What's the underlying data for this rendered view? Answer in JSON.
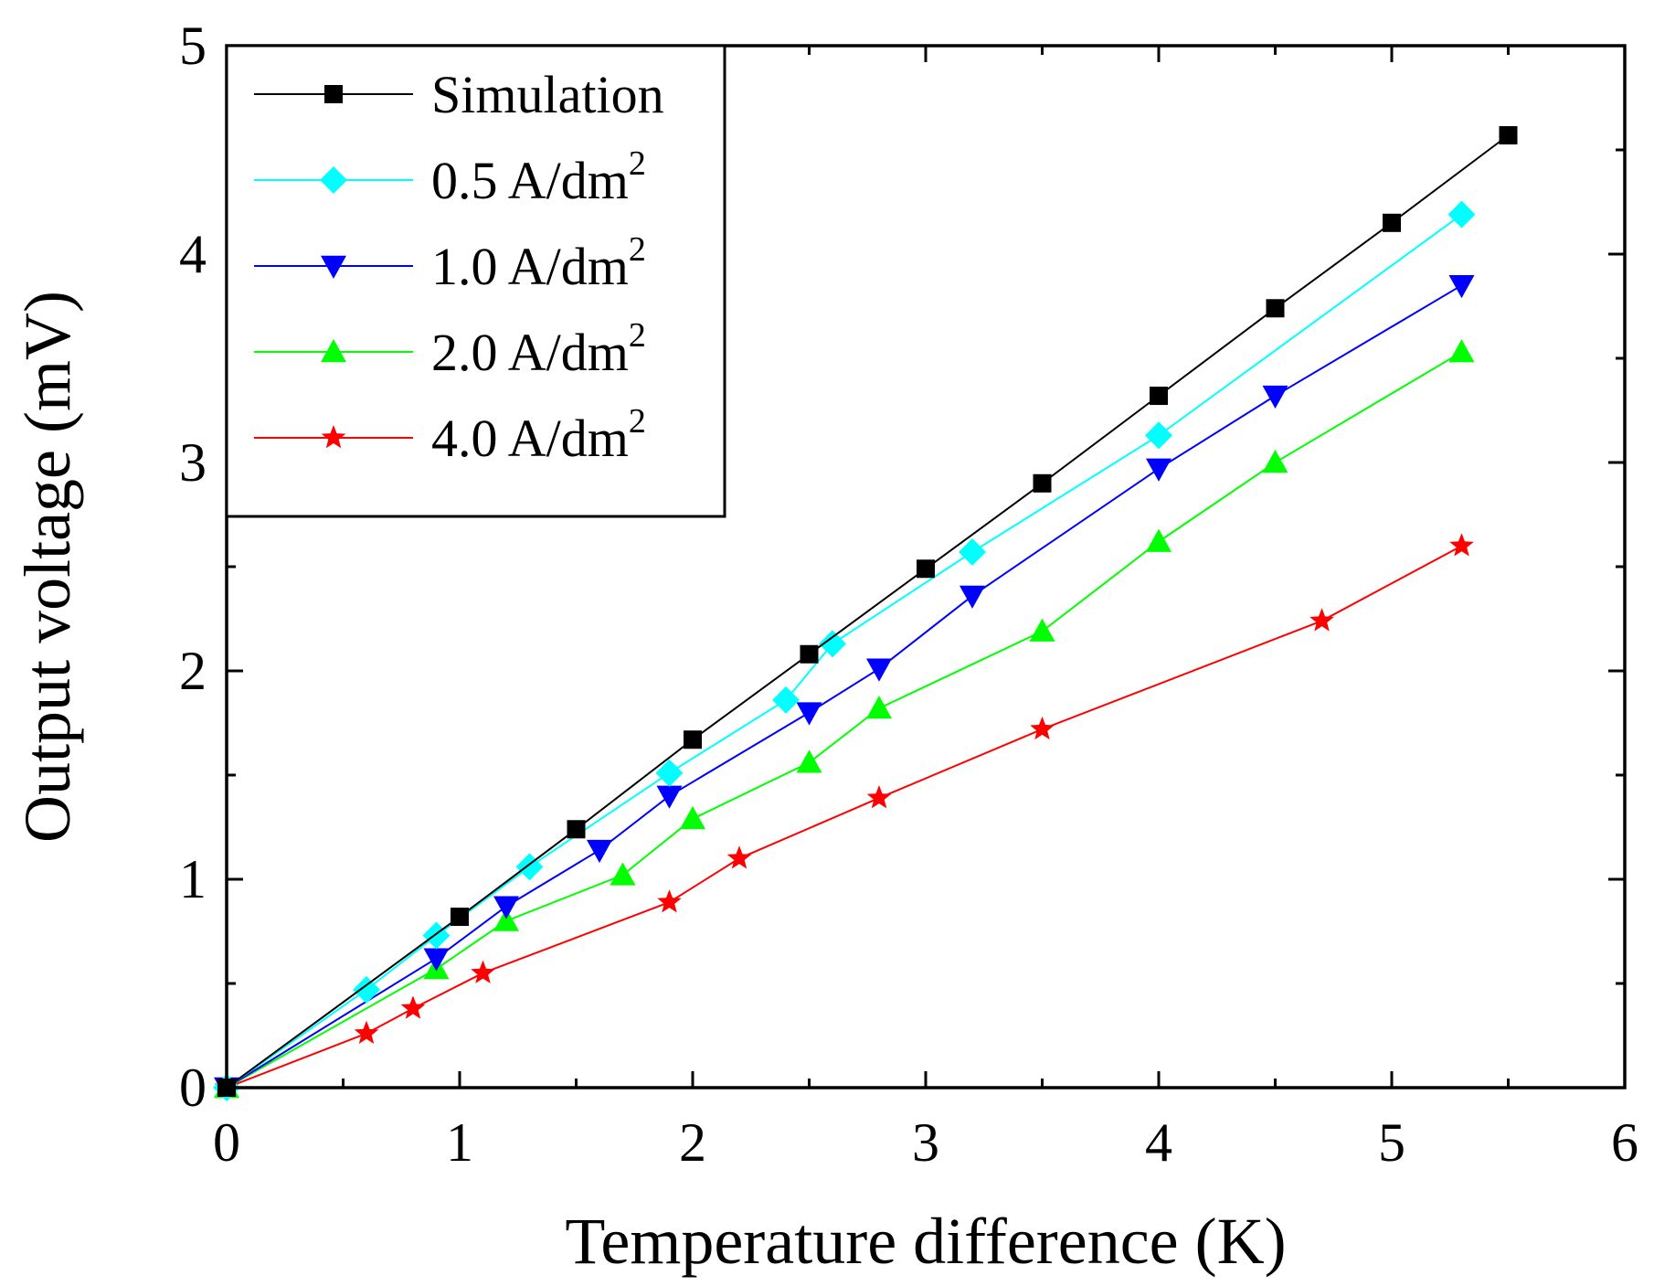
{
  "chart_data": {
    "type": "line",
    "title": "",
    "xlabel": "Temperature difference (K)",
    "ylabel": "Output voltage (mV)",
    "xlim": [
      0,
      6
    ],
    "ylim": [
      0,
      5
    ],
    "xticks": [
      0,
      1,
      2,
      3,
      4,
      5,
      6
    ],
    "yticks": [
      0,
      1,
      2,
      3,
      4,
      5
    ],
    "minor_step": 0.5,
    "grid": false,
    "legend_position": "top-left",
    "series": [
      {
        "name": "Simulation",
        "label_base": "Simulation",
        "label_sup": "",
        "color": "#000000",
        "marker": "square",
        "x": [
          0,
          1.0,
          1.5,
          2.0,
          2.5,
          3.0,
          3.5,
          4.0,
          4.5,
          5.0,
          5.5
        ],
        "y": [
          0,
          0.82,
          1.24,
          1.67,
          2.08,
          2.49,
          2.9,
          3.32,
          3.74,
          4.15,
          4.57
        ]
      },
      {
        "name": "0.5 A/dm2",
        "label_base": "0.5 A/dm",
        "label_sup": "2",
        "color": "#00ffff",
        "marker": "diamond",
        "x": [
          0,
          0.6,
          0.9,
          1.3,
          1.9,
          2.4,
          2.6,
          3.2,
          4.0,
          5.3
        ],
        "y": [
          0,
          0.47,
          0.73,
          1.06,
          1.51,
          1.86,
          2.13,
          2.57,
          3.13,
          4.19
        ]
      },
      {
        "name": "1.0 A/dm2",
        "label_base": "1.0 A/dm",
        "label_sup": "2",
        "color": "#0000ff",
        "marker": "triangle-down",
        "x": [
          0,
          0.9,
          1.2,
          1.6,
          1.9,
          2.5,
          2.8,
          3.2,
          4.0,
          4.5,
          5.3
        ],
        "y": [
          0,
          0.62,
          0.87,
          1.14,
          1.4,
          1.8,
          2.01,
          2.36,
          2.97,
          3.32,
          3.85
        ]
      },
      {
        "name": "2.0 A/dm2",
        "label_base": "2.0 A/dm",
        "label_sup": "2",
        "color": "#00ff00",
        "marker": "triangle-up",
        "x": [
          0,
          0.9,
          1.2,
          1.7,
          2.0,
          2.5,
          2.8,
          3.5,
          4.0,
          4.5,
          5.3
        ],
        "y": [
          0,
          0.57,
          0.8,
          1.02,
          1.29,
          1.56,
          1.82,
          2.19,
          2.62,
          3.0,
          3.53
        ]
      },
      {
        "name": "4.0 A/dm2",
        "label_base": "4.0 A/dm",
        "label_sup": "2",
        "color": "#ff0000",
        "marker": "star",
        "x": [
          0,
          0.6,
          0.8,
          1.1,
          1.9,
          2.2,
          2.8,
          3.5,
          4.7,
          5.3
        ],
        "y": [
          0,
          0.26,
          0.38,
          0.55,
          0.89,
          1.1,
          1.39,
          1.72,
          2.24,
          2.6
        ]
      }
    ]
  }
}
